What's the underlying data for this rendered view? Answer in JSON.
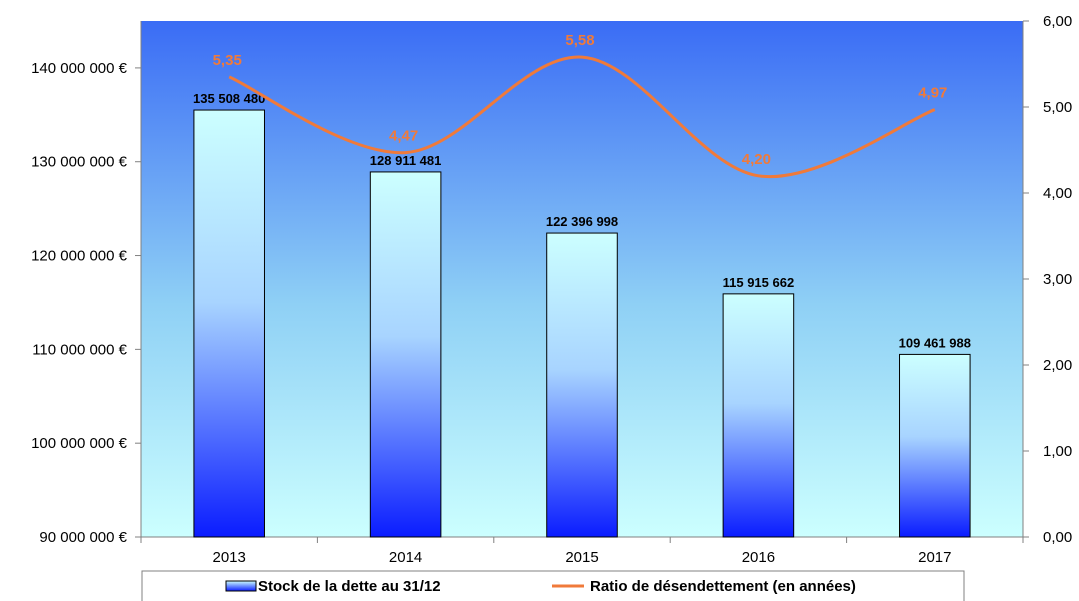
{
  "chart_data": {
    "type": "bar",
    "categories": [
      "2013",
      "2014",
      "2015",
      "2016",
      "2017"
    ],
    "series": [
      {
        "name": "Stock de la dette au 31/12",
        "type": "bar",
        "axis": "left",
        "values": [
          135508480,
          128911481,
          122396998,
          115915662,
          109461988
        ],
        "labels": [
          "135 508 480",
          "128 911 481",
          "122 396 998",
          "115 915 662",
          "109 461 988"
        ]
      },
      {
        "name": "Ratio de désendettement (en années)",
        "type": "line",
        "axis": "right",
        "smooth": true,
        "values": [
          5.35,
          4.47,
          5.58,
          4.2,
          4.97
        ],
        "labels": [
          "5,35",
          "4,47",
          "5,58",
          "4,20",
          "4,97"
        ]
      }
    ],
    "y_left": {
      "ylim": [
        90000000,
        145000000
      ],
      "ticks": [
        90000000,
        100000000,
        110000000,
        120000000,
        130000000,
        140000000
      ],
      "tick_labels": [
        "90 000 000 €",
        "100 000 000 €",
        "110 000 000 €",
        "120 000 000 €",
        "130 000 000 €",
        "140 000 000 €"
      ]
    },
    "y_right": {
      "ylim": [
        0,
        6
      ],
      "ticks": [
        0,
        1,
        2,
        3,
        4,
        5,
        6
      ],
      "tick_labels": [
        "0,00",
        "1,00",
        "2,00",
        "3,00",
        "4,00",
        "5,00",
        "6,00"
      ]
    },
    "grid": false,
    "legend_position": "bottom",
    "colors": {
      "bar_top": "#ccffff",
      "bar_bottom": "#0a1cff",
      "plot_top": "#3a6cf5",
      "plot_bottom": "#ccffff",
      "line": "#f07a3a",
      "line_label": "#f07a3a",
      "bar_outline": "#000000"
    }
  }
}
